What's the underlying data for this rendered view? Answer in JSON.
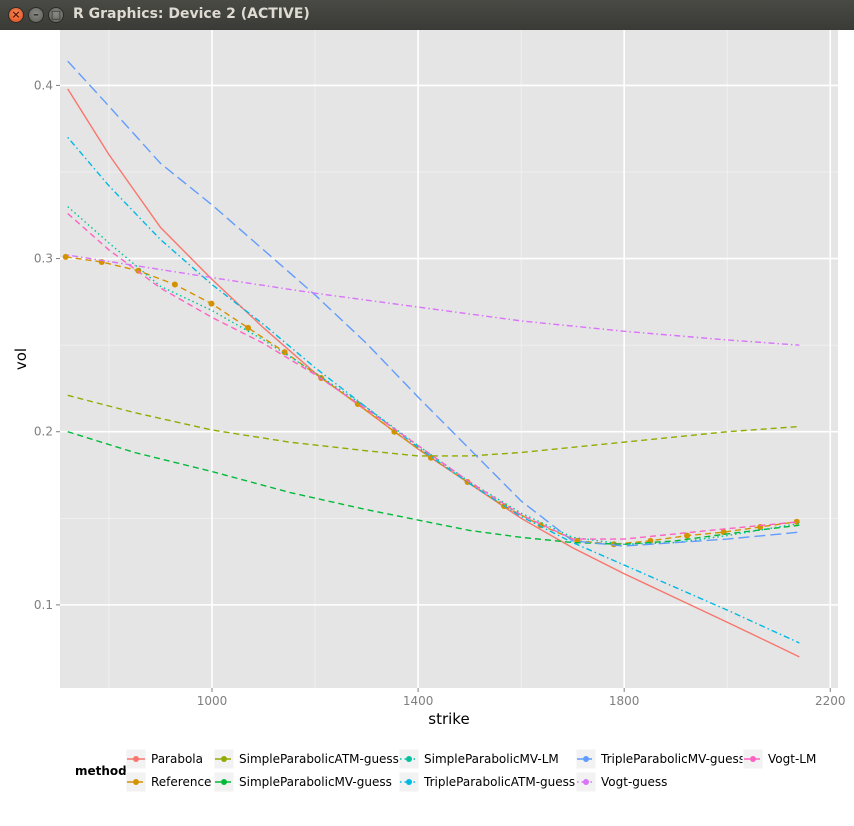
{
  "window": {
    "title": "R Graphics: Device 2 (ACTIVE)",
    "close_glyph": "×",
    "minimize_glyph": "–",
    "maximize_glyph": "□"
  },
  "chart_data": {
    "type": "line",
    "xlabel": "strike",
    "ylabel": "vol",
    "xlim": [
      705,
      2215
    ],
    "ylim": [
      0.052,
      0.432
    ],
    "x_ticks": [
      1000,
      1400,
      1800,
      2200
    ],
    "x_tick_labels": [
      "1000",
      "1400",
      "1800",
      "2200"
    ],
    "y_ticks": [
      0.1,
      0.2,
      0.3,
      0.4
    ],
    "y_tick_labels": [
      "0.1",
      "0.2",
      "0.3",
      "0.4"
    ],
    "grid": true,
    "legend": {
      "title": "method",
      "position": "bottom"
    },
    "series": [
      {
        "name": "Parabola",
        "color": "#F8766D",
        "dash": "solid",
        "points": [
          [
            720,
            0.398
          ],
          [
            800,
            0.36
          ],
          [
            900,
            0.318
          ],
          [
            1000,
            0.288
          ],
          [
            1100,
            0.26
          ],
          [
            1200,
            0.234
          ],
          [
            1300,
            0.212
          ],
          [
            1400,
            0.19
          ],
          [
            1500,
            0.17
          ],
          [
            1600,
            0.15
          ],
          [
            1700,
            0.133
          ],
          [
            1800,
            0.118
          ],
          [
            1900,
            0.104
          ],
          [
            2000,
            0.09
          ],
          [
            2140,
            0.07
          ]
        ]
      },
      {
        "name": "Reference",
        "color": "#D39200",
        "dash": "dashed",
        "marker": "point",
        "points": [
          [
            716,
            0.301
          ],
          [
            786,
            0.298
          ],
          [
            857,
            0.293
          ],
          [
            928,
            0.285
          ],
          [
            999,
            0.274
          ],
          [
            1070,
            0.26
          ],
          [
            1141,
            0.246
          ],
          [
            1212,
            0.231
          ],
          [
            1283,
            0.216
          ],
          [
            1354,
            0.2
          ],
          [
            1425,
            0.185
          ],
          [
            1496,
            0.171
          ],
          [
            1567,
            0.157
          ],
          [
            1638,
            0.146
          ],
          [
            1709,
            0.137
          ],
          [
            1780,
            0.135
          ],
          [
            1851,
            0.137
          ],
          [
            1922,
            0.14
          ],
          [
            1993,
            0.142
          ],
          [
            2064,
            0.145
          ],
          [
            2135,
            0.148
          ]
        ]
      },
      {
        "name": "SimpleParabolicATM-guess",
        "color": "#93AA00",
        "dash": "dashed",
        "points": [
          [
            720,
            0.221
          ],
          [
            850,
            0.211
          ],
          [
            1000,
            0.201
          ],
          [
            1150,
            0.194
          ],
          [
            1300,
            0.189
          ],
          [
            1400,
            0.186
          ],
          [
            1500,
            0.186
          ],
          [
            1600,
            0.188
          ],
          [
            1700,
            0.191
          ],
          [
            1800,
            0.194
          ],
          [
            1900,
            0.197
          ],
          [
            2000,
            0.2
          ],
          [
            2140,
            0.203
          ]
        ]
      },
      {
        "name": "SimpleParabolicMV-guess",
        "color": "#00BA38",
        "dash": "dashed",
        "points": [
          [
            720,
            0.2
          ],
          [
            850,
            0.188
          ],
          [
            1000,
            0.177
          ],
          [
            1150,
            0.165
          ],
          [
            1300,
            0.155
          ],
          [
            1400,
            0.149
          ],
          [
            1500,
            0.143
          ],
          [
            1600,
            0.139
          ],
          [
            1700,
            0.136
          ],
          [
            1800,
            0.135
          ],
          [
            1900,
            0.137
          ],
          [
            2000,
            0.141
          ],
          [
            2140,
            0.146
          ]
        ]
      },
      {
        "name": "SimpleParabolicMV-LM",
        "color": "#00C19F",
        "dash": "dotted",
        "points": [
          [
            720,
            0.33
          ],
          [
            800,
            0.309
          ],
          [
            900,
            0.284
          ],
          [
            1000,
            0.27
          ],
          [
            1100,
            0.253
          ],
          [
            1200,
            0.234
          ],
          [
            1300,
            0.214
          ],
          [
            1400,
            0.192
          ],
          [
            1500,
            0.171
          ],
          [
            1600,
            0.153
          ],
          [
            1700,
            0.139
          ],
          [
            1800,
            0.135
          ],
          [
            1900,
            0.136
          ],
          [
            2000,
            0.14
          ],
          [
            2140,
            0.147
          ]
        ]
      },
      {
        "name": "TripleParabolicATM-guess",
        "color": "#00B9E3",
        "dash": "dotdash",
        "points": [
          [
            720,
            0.37
          ],
          [
            800,
            0.342
          ],
          [
            900,
            0.311
          ],
          [
            1000,
            0.285
          ],
          [
            1100,
            0.262
          ],
          [
            1200,
            0.237
          ],
          [
            1300,
            0.214
          ],
          [
            1400,
            0.191
          ],
          [
            1500,
            0.17
          ],
          [
            1600,
            0.151
          ],
          [
            1700,
            0.136
          ],
          [
            1800,
            0.123
          ],
          [
            1900,
            0.11
          ],
          [
            2000,
            0.097
          ],
          [
            2140,
            0.078
          ]
        ]
      },
      {
        "name": "TripleParabolicMV-guess",
        "color": "#619CFF",
        "dash": "longdash",
        "points": [
          [
            720,
            0.414
          ],
          [
            800,
            0.388
          ],
          [
            900,
            0.355
          ],
          [
            1000,
            0.331
          ],
          [
            1100,
            0.305
          ],
          [
            1200,
            0.279
          ],
          [
            1300,
            0.251
          ],
          [
            1400,
            0.22
          ],
          [
            1500,
            0.19
          ],
          [
            1600,
            0.16
          ],
          [
            1700,
            0.137
          ],
          [
            1800,
            0.134
          ],
          [
            1900,
            0.136
          ],
          [
            2000,
            0.138
          ],
          [
            2140,
            0.142
          ]
        ]
      },
      {
        "name": "Vogt-guess",
        "color": "#DB72FB",
        "dash": "dotdash",
        "points": [
          [
            720,
            0.302
          ],
          [
            850,
            0.296
          ],
          [
            1000,
            0.289
          ],
          [
            1200,
            0.28
          ],
          [
            1400,
            0.272
          ],
          [
            1600,
            0.264
          ],
          [
            1800,
            0.258
          ],
          [
            2000,
            0.253
          ],
          [
            2140,
            0.25
          ]
        ]
      },
      {
        "name": "Vogt-LM",
        "color": "#FF61C3",
        "dash": "dashed",
        "points": [
          [
            720,
            0.326
          ],
          [
            800,
            0.305
          ],
          [
            900,
            0.283
          ],
          [
            1000,
            0.266
          ],
          [
            1100,
            0.251
          ],
          [
            1200,
            0.233
          ],
          [
            1300,
            0.213
          ],
          [
            1400,
            0.192
          ],
          [
            1500,
            0.171
          ],
          [
            1600,
            0.152
          ],
          [
            1700,
            0.138
          ],
          [
            1800,
            0.138
          ],
          [
            1900,
            0.141
          ],
          [
            2000,
            0.144
          ],
          [
            2140,
            0.148
          ]
        ]
      }
    ]
  }
}
